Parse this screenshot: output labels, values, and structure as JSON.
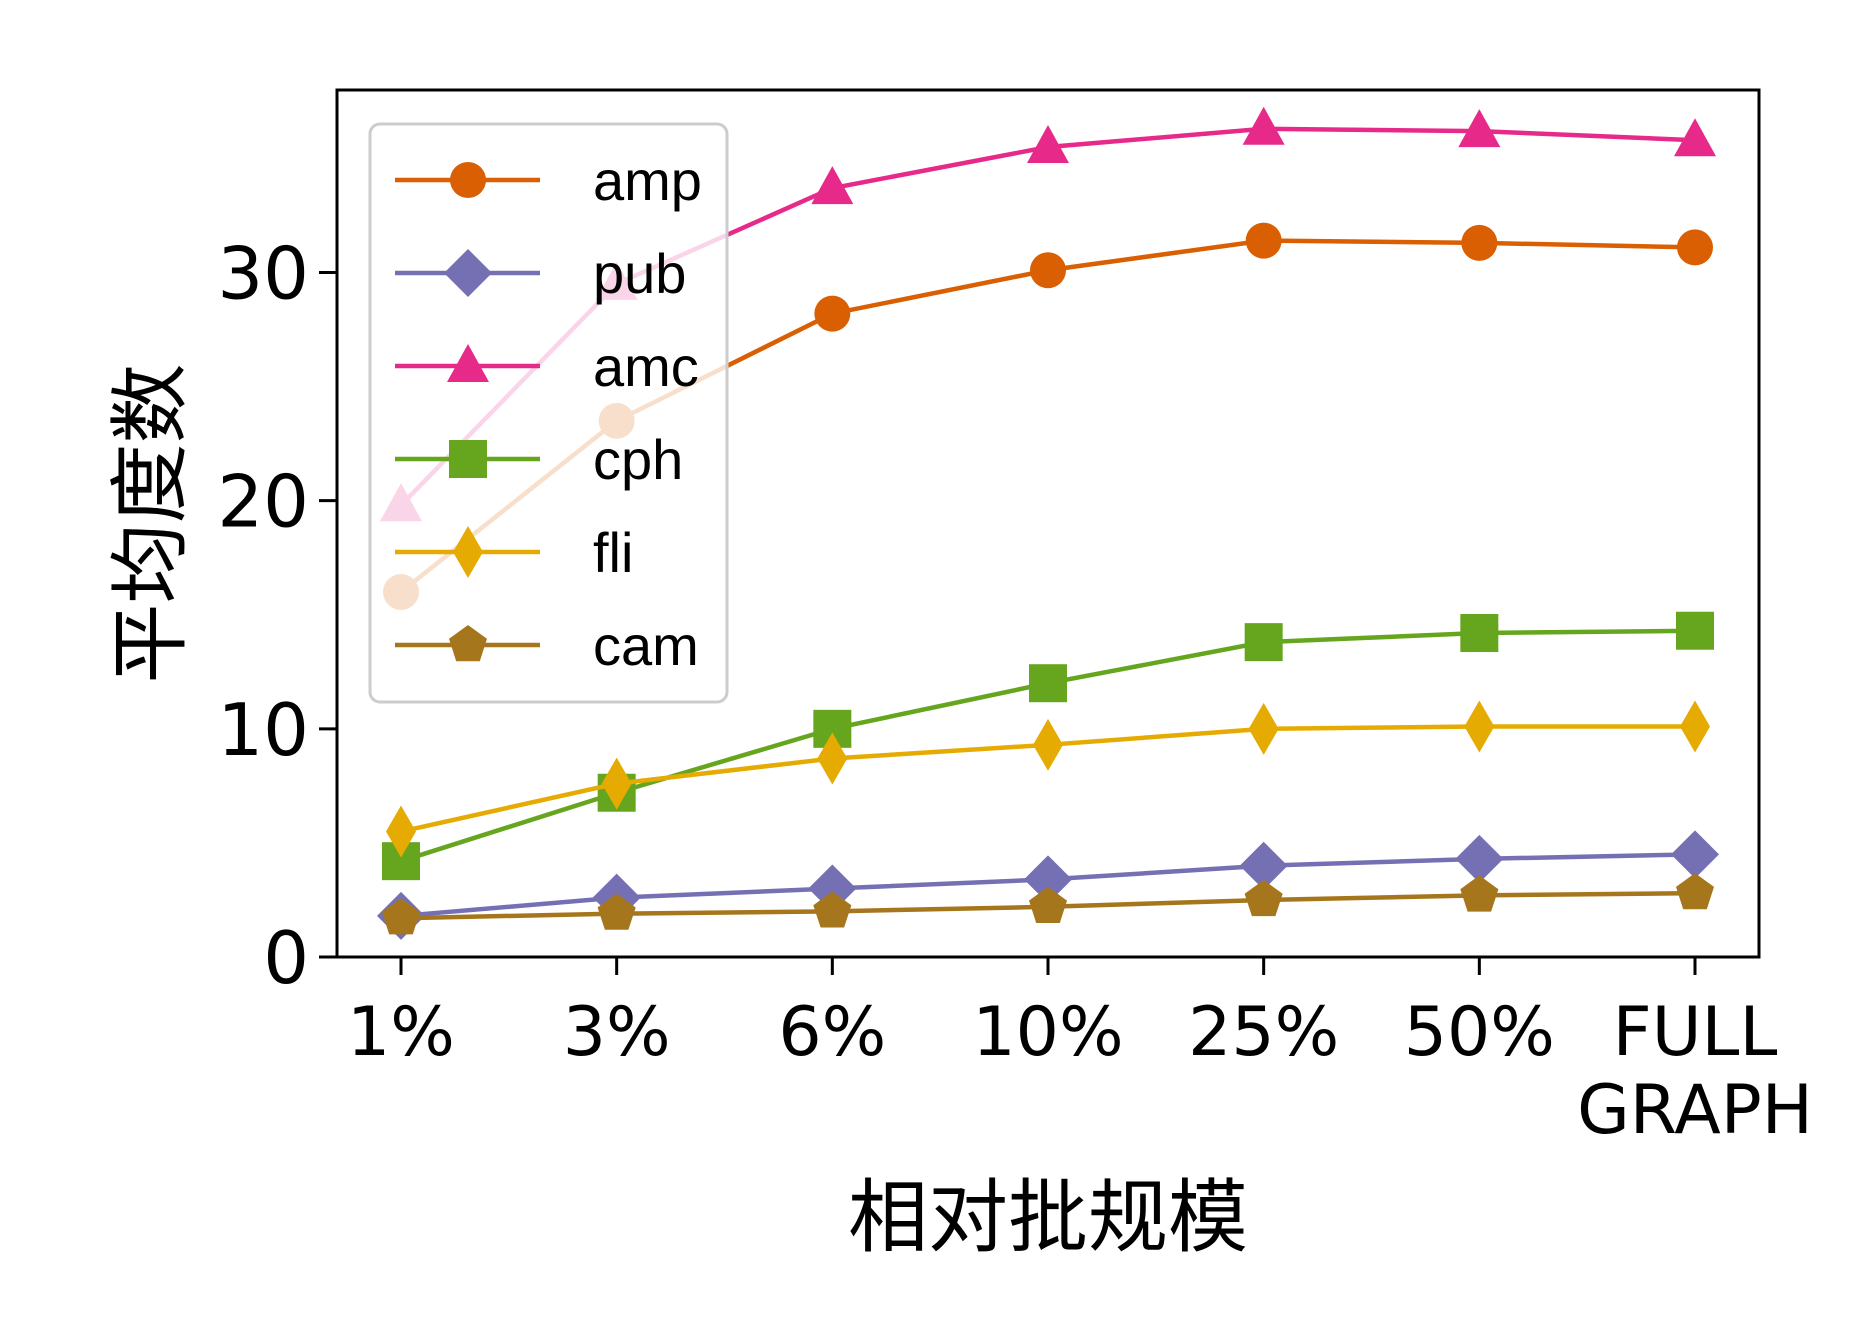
{
  "chart_data": {
    "type": "line",
    "title": "",
    "xlabel": "相对批规模",
    "ylabel": "平均度数",
    "categories": [
      "1%",
      "3%",
      "6%",
      "10%",
      "25%",
      "50%",
      "FULL GRAPH"
    ],
    "category_lines": [
      [
        "1%"
      ],
      [
        "3%"
      ],
      [
        "6%"
      ],
      [
        "10%"
      ],
      [
        "25%"
      ],
      [
        "50%"
      ],
      [
        "FULL",
        "GRAPH"
      ]
    ],
    "y_ticks": [
      0,
      10,
      20,
      30
    ],
    "ylim": [
      0,
      38
    ],
    "grid": false,
    "legend_position": "top-left",
    "series": [
      {
        "name": "amp",
        "color": "#d95f02",
        "marker": "circle",
        "values": [
          16.0,
          23.5,
          28.2,
          30.1,
          31.4,
          31.3,
          31.1
        ]
      },
      {
        "name": "pub",
        "color": "#7570b3",
        "marker": "diamond",
        "values": [
          1.8,
          2.6,
          3.0,
          3.4,
          4.0,
          4.3,
          4.5
        ]
      },
      {
        "name": "amc",
        "color": "#e7298a",
        "marker": "triangle",
        "values": [
          19.8,
          29.5,
          33.7,
          35.5,
          36.3,
          36.2,
          35.8
        ]
      },
      {
        "name": "cph",
        "color": "#66a61e",
        "marker": "square",
        "values": [
          4.2,
          7.2,
          10.0,
          12.0,
          13.8,
          14.2,
          14.3
        ]
      },
      {
        "name": "fli",
        "color": "#e6ab02",
        "marker": "thin-diamond",
        "values": [
          5.5,
          7.6,
          8.7,
          9.3,
          10.0,
          10.1,
          10.1
        ]
      },
      {
        "name": "cam",
        "color": "#a6761d",
        "marker": "pentagon",
        "values": [
          1.7,
          1.9,
          2.0,
          2.2,
          2.5,
          2.7,
          2.8
        ]
      }
    ]
  }
}
